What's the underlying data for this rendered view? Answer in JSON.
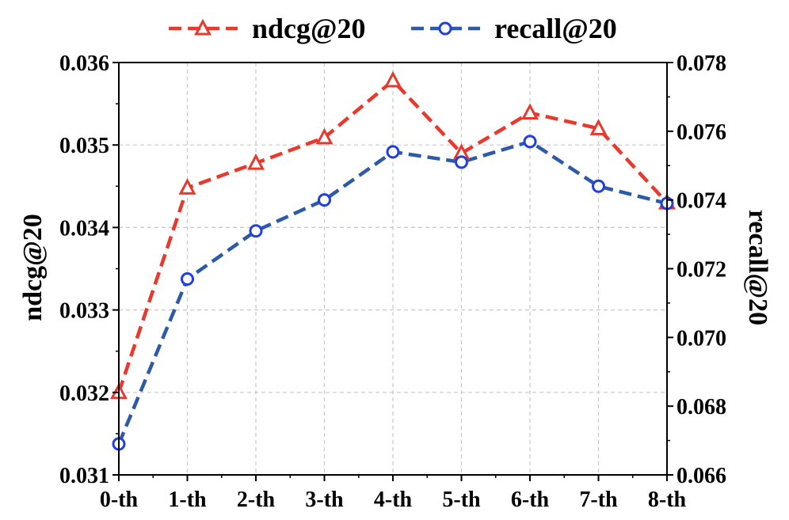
{
  "chart_data": {
    "type": "line",
    "categories": [
      "0-th",
      "1-th",
      "2-th",
      "3-th",
      "4-th",
      "5-th",
      "6-th",
      "7-th",
      "8-th"
    ],
    "series": [
      {
        "name": "ndcg@20",
        "axis": "left",
        "color": "#e8392c",
        "marker": "triangle",
        "line_style": "dashed",
        "values": [
          0.032,
          0.03448,
          0.03478,
          0.03509,
          0.03578,
          0.0349,
          0.03539,
          0.0352,
          0.0343
        ]
      },
      {
        "name": "recall@20",
        "axis": "right",
        "color": "#2d5aa6",
        "marker_color": "#1f3fe0",
        "marker": "circle",
        "line_style": "dashed",
        "values": [
          0.0669,
          0.0717,
          0.0731,
          0.074,
          0.0754,
          0.0751,
          0.0757,
          0.0744,
          0.0739
        ]
      }
    ],
    "ylabel_left": "ndcg@20",
    "ylabel_right": "recall@20",
    "ylim_left": [
      0.031,
      0.036
    ],
    "ylim_right": [
      0.066,
      0.078
    ],
    "yticks_left": [
      "0.031",
      "0.032",
      "0.033",
      "0.034",
      "0.035",
      "0.036"
    ],
    "yticks_right": [
      "0.066",
      "0.068",
      "0.070",
      "0.072",
      "0.074",
      "0.076",
      "0.078"
    ],
    "grid": true,
    "legend_position": "top-center"
  }
}
